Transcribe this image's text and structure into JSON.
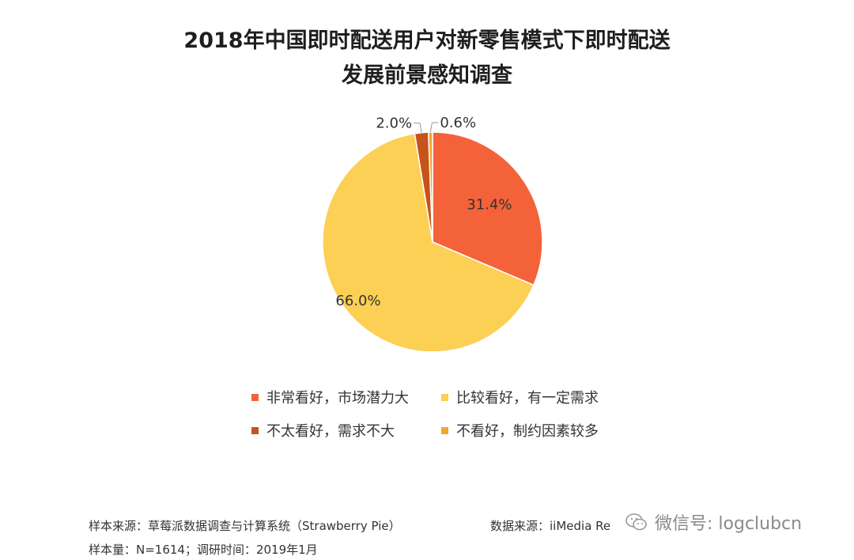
{
  "chart_data": {
    "type": "pie",
    "title": "2018年中国即时配送用户对新零售模式下即时配送发展前景感知调查",
    "title_lines": [
      "2018年中国即时配送用户对新零售模式下即时配送",
      "发展前景感知调查"
    ],
    "categories": [
      "非常看好，市场潜力大",
      "比较看好，有一定需求",
      "不太看好，需求不大",
      "不看好，制约因素较多"
    ],
    "values": [
      31.4,
      66.0,
      2.0,
      0.6
    ],
    "labels": [
      "31.4%",
      "66.0%",
      "2.0%",
      "0.6%"
    ],
    "colors": [
      "#F4623A",
      "#FCCF55",
      "#C7531B",
      "#F4A531"
    ],
    "legend_position": "bottom"
  },
  "footer": {
    "source_left": "样本来源：草莓派数据调查与计算系统（Strawberry Pie）",
    "sample": "样本量：N=1614；调研时间：2019年1月",
    "source_right": "数据来源：iiMedia Re",
    "watermark": "微信号: logclubcn"
  },
  "icons": {
    "watermark": "wechat-icon"
  }
}
